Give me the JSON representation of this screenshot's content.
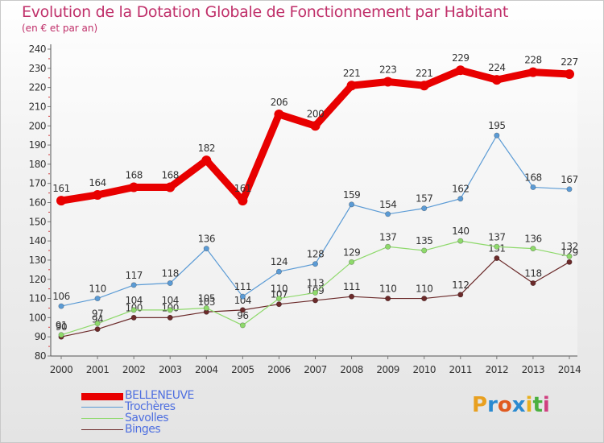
{
  "chart_data": {
    "type": "line",
    "title": "Evolution de la Dotation Globale de Fonctionnement par Habitant",
    "subtitle": "(en € et par an)",
    "x": [
      "2000",
      "2001",
      "2002",
      "2003",
      "2004",
      "2005",
      "2006",
      "2007",
      "2008",
      "2009",
      "2010",
      "2011",
      "2012",
      "2013",
      "2014"
    ],
    "ylim": [
      80,
      240
    ],
    "yticks": [
      80,
      90,
      100,
      110,
      120,
      130,
      140,
      150,
      160,
      170,
      180,
      190,
      200,
      210,
      220,
      230,
      240
    ],
    "series": [
      {
        "name": "BELLENEUVE",
        "color": "#e80000",
        "values": [
          161,
          164,
          168,
          168,
          182,
          161,
          206,
          200,
          221,
          223,
          221,
          229,
          224,
          228,
          227
        ]
      },
      {
        "name": "Trochères",
        "color": "#5b9bd5",
        "values": [
          106,
          110,
          117,
          118,
          136,
          111,
          124,
          128,
          159,
          154,
          157,
          162,
          195,
          168,
          167
        ]
      },
      {
        "name": "Savolles",
        "color": "#8ed96b",
        "values": [
          91,
          97,
          104,
          104,
          105,
          96,
          110,
          113,
          129,
          137,
          135,
          140,
          137,
          136,
          132
        ]
      },
      {
        "name": "Binges",
        "color": "#6b2a2a",
        "values": [
          90,
          94,
          100,
          100,
          103,
          104,
          107,
          109,
          111,
          110,
          110,
          112,
          131,
          118,
          129
        ]
      }
    ]
  },
  "logo": {
    "letters": [
      "P",
      "r",
      "o",
      "x",
      "i",
      "t",
      "i"
    ],
    "colors": [
      "#e8a020",
      "#2a8ad0",
      "#e05a20",
      "#2a8ad0",
      "#e8b020",
      "#4ab040",
      "#d04080"
    ]
  }
}
